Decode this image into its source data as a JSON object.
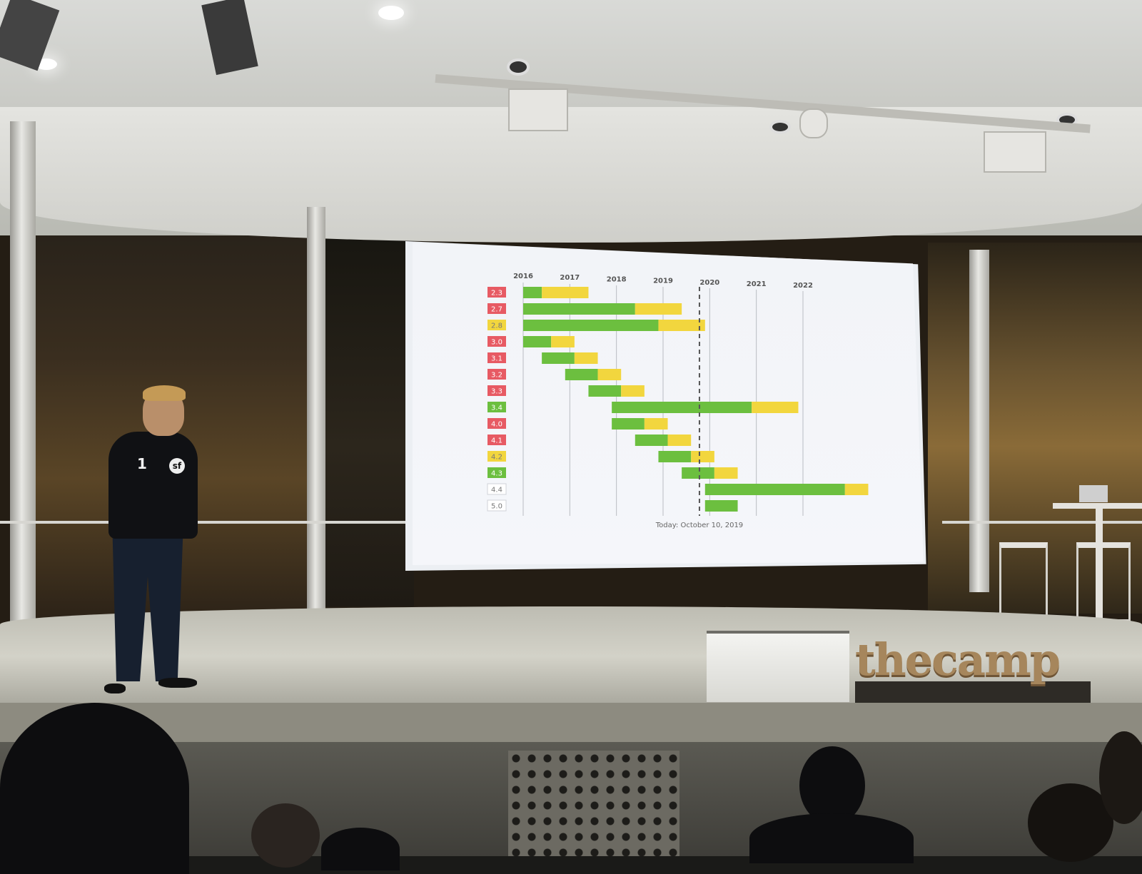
{
  "scene": {
    "venue_logo": "thecamp",
    "shirt_print": "1",
    "shirt_badge": "sf"
  },
  "chart_data": {
    "type": "bar",
    "subtype": "gantt",
    "title": "",
    "xlabel": "",
    "ylabel": "",
    "years": [
      "2016",
      "2017",
      "2018",
      "2019",
      "2020",
      "2021",
      "2022"
    ],
    "x_range": [
      2016.0,
      2023.5
    ],
    "today_marker": 2019.78,
    "annotation": "Today: October 10, 2019",
    "colors": {
      "active_support": "#6cbf3f",
      "security_support": "#f2d63e",
      "label_red": "#e75a63",
      "label_yellow": "#f2d63e",
      "label_green": "#6cbf3f",
      "label_white": "#ffffff"
    },
    "series": [
      {
        "name": "active_support"
      },
      {
        "name": "security_support"
      }
    ],
    "rows": [
      {
        "label": "2.3",
        "status": "red",
        "start": 2016.0,
        "active_end": 2016.4,
        "end": 2017.4
      },
      {
        "label": "2.7",
        "status": "red",
        "start": 2016.0,
        "active_end": 2018.4,
        "end": 2019.4
      },
      {
        "label": "2.8",
        "status": "yellow",
        "start": 2016.0,
        "active_end": 2018.9,
        "end": 2019.9
      },
      {
        "label": "3.0",
        "status": "red",
        "start": 2016.0,
        "active_end": 2016.6,
        "end": 2017.1
      },
      {
        "label": "3.1",
        "status": "red",
        "start": 2016.4,
        "active_end": 2017.1,
        "end": 2017.6
      },
      {
        "label": "3.2",
        "status": "red",
        "start": 2016.9,
        "active_end": 2017.6,
        "end": 2018.1
      },
      {
        "label": "3.3",
        "status": "red",
        "start": 2017.4,
        "active_end": 2018.1,
        "end": 2018.6
      },
      {
        "label": "3.4",
        "status": "green",
        "start": 2017.9,
        "active_end": 2020.9,
        "end": 2021.9
      },
      {
        "label": "4.0",
        "status": "red",
        "start": 2017.9,
        "active_end": 2018.6,
        "end": 2019.1
      },
      {
        "label": "4.1",
        "status": "red",
        "start": 2018.4,
        "active_end": 2019.1,
        "end": 2019.6
      },
      {
        "label": "4.2",
        "status": "yellow",
        "start": 2018.9,
        "active_end": 2019.6,
        "end": 2020.1
      },
      {
        "label": "4.3",
        "status": "green",
        "start": 2019.4,
        "active_end": 2020.1,
        "end": 2020.6
      },
      {
        "label": "4.4",
        "status": "white",
        "start": 2019.9,
        "active_end": 2022.9,
        "end": 2023.4
      },
      {
        "label": "5.0",
        "status": "white",
        "start": 2019.9,
        "active_end": 2020.6,
        "end": 2020.6
      }
    ]
  }
}
